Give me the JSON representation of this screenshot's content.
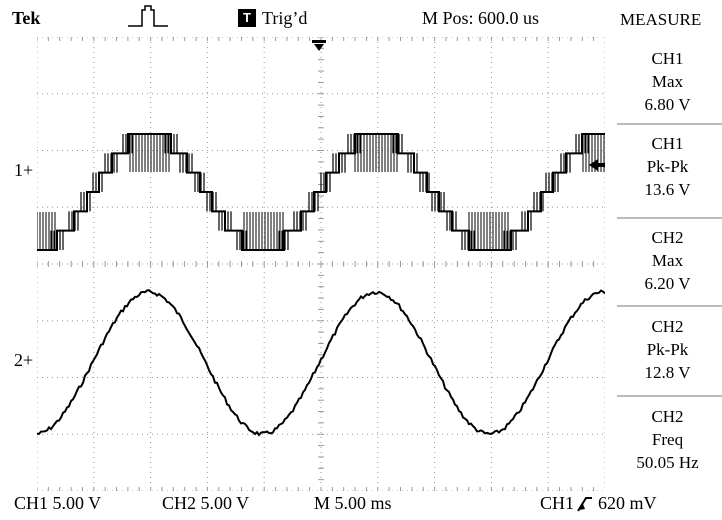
{
  "header": {
    "brand": "Tek",
    "trigger_state_icon_label": "T",
    "trigger_state": "Trig’d",
    "position": "M Pos: 600.0 us",
    "measure_title": "MEASURE"
  },
  "channels": {
    "ch1_marker": "1+",
    "ch2_marker": "2+"
  },
  "measurements": [
    {
      "source": "CH1",
      "type": "Max",
      "value": "6.80 V"
    },
    {
      "source": "CH1",
      "type": "Pk-Pk",
      "value": "13.6 V"
    },
    {
      "source": "CH2",
      "type": "Max",
      "value": "6.20 V"
    },
    {
      "source": "CH2",
      "type": "Pk-Pk",
      "value": "12.8 V"
    },
    {
      "source": "CH2",
      "type": "Freq",
      "value": "50.05 Hz"
    }
  ],
  "status": {
    "ch1_scale": "CH1  5.00 V",
    "ch2_scale": "CH2  5.00 V",
    "timebase": "M 5.00 ms",
    "trigger_source": "CH1",
    "trigger_level": "620 mV"
  },
  "chart_data": {
    "type": "line",
    "series": [
      {
        "name": "CH1",
        "waveform": "multilevel stepped",
        "max_V": 6.8,
        "pk_pk_V": 13.6,
        "frequency_Hz": 50.05
      },
      {
        "name": "CH2",
        "waveform": "sine",
        "max_V": 6.2,
        "pk_pk_V": 12.8,
        "frequency_Hz": 50.05
      }
    ],
    "grid": true
  },
  "colors": {
    "background": "#ffffff",
    "trace": "#000000",
    "graticule": "#9a9a9a"
  }
}
